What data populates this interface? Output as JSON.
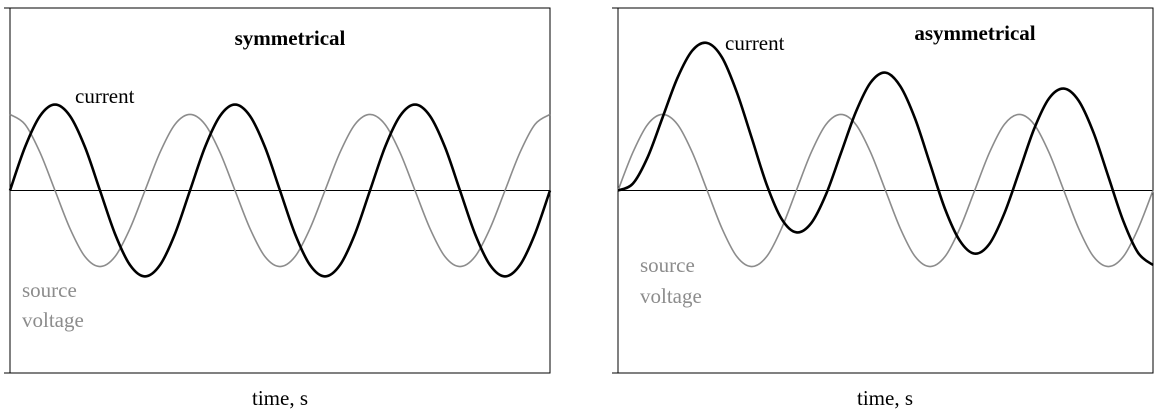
{
  "chart_data": [
    {
      "type": "line",
      "title": "symmetrical",
      "xlabel": "time, s",
      "xlim": [
        0,
        36
      ],
      "ylim": [
        -2.4,
        2.4
      ],
      "annotations": [
        {
          "text": "current"
        },
        {
          "text": "source"
        },
        {
          "text": "voltage"
        }
      ],
      "x": [
        0,
        1,
        2,
        3,
        4,
        5,
        6,
        7,
        8,
        9,
        10,
        11,
        12,
        13,
        14,
        15,
        16,
        17,
        18,
        19,
        20,
        21,
        22,
        23,
        24,
        25,
        26,
        27,
        28,
        29,
        30,
        31,
        32,
        33,
        34,
        35,
        36
      ],
      "series": [
        {
          "name": "source voltage",
          "color": "#8c8c8c",
          "values": [
            1,
            0.87,
            0.5,
            0,
            -0.5,
            -0.87,
            -1,
            -0.87,
            -0.5,
            0,
            0.5,
            0.87,
            1,
            0.87,
            0.5,
            0,
            -0.5,
            -0.87,
            -1,
            -0.87,
            -0.5,
            0,
            0.5,
            0.87,
            1,
            0.87,
            0.5,
            0,
            -0.5,
            -0.87,
            -1,
            -0.87,
            -0.5,
            0,
            0.5,
            0.87,
            1
          ]
        },
        {
          "name": "current",
          "color": "#000000",
          "values": [
            0,
            0.57,
            0.98,
            1.13,
            0.98,
            0.57,
            0,
            -0.57,
            -0.98,
            -1.13,
            -0.98,
            -0.57,
            0,
            0.57,
            0.98,
            1.13,
            0.98,
            0.57,
            0,
            -0.57,
            -0.98,
            -1.13,
            -0.98,
            -0.57,
            0,
            0.57,
            0.98,
            1.13,
            0.98,
            0.57,
            0,
            -0.57,
            -0.98,
            -1.13,
            -0.98,
            -0.57,
            0
          ]
        }
      ]
    },
    {
      "type": "line",
      "title": "asymmetrical",
      "xlabel": "time, s",
      "xlim": [
        0,
        36
      ],
      "ylim": [
        -2.4,
        2.4
      ],
      "annotations": [
        {
          "text": "current"
        },
        {
          "text": "source"
        },
        {
          "text": "voltage"
        }
      ],
      "x": [
        0,
        1,
        2,
        3,
        4,
        5,
        6,
        7,
        8,
        9,
        10,
        11,
        12,
        13,
        14,
        15,
        16,
        17,
        18,
        19,
        20,
        21,
        22,
        23,
        24,
        25,
        26,
        27,
        28,
        29,
        30,
        31,
        32,
        33,
        34,
        35,
        36
      ],
      "series": [
        {
          "name": "source voltage",
          "color": "#8c8c8c",
          "values": [
            0,
            0.5,
            0.87,
            1,
            0.87,
            0.5,
            0,
            -0.5,
            -0.87,
            -1,
            -0.87,
            -0.5,
            0,
            0.5,
            0.87,
            1,
            0.87,
            0.5,
            0,
            -0.5,
            -0.87,
            -1,
            -0.87,
            -0.5,
            0,
            0.5,
            0.87,
            1,
            0.87,
            0.5,
            0,
            -0.5,
            -0.87,
            -1,
            -0.87,
            -0.5,
            0
          ]
        },
        {
          "name": "current",
          "color": "#000000",
          "values": [
            0,
            0.09,
            0.44,
            0.96,
            1.48,
            1.84,
            1.94,
            1.75,
            1.29,
            0.69,
            0.08,
            -0.37,
            -0.55,
            -0.43,
            -0.05,
            0.49,
            1.03,
            1.42,
            1.55,
            1.37,
            0.94,
            0.35,
            -0.24,
            -0.66,
            -0.83,
            -0.7,
            -0.3,
            0.25,
            0.81,
            1.21,
            1.34,
            1.18,
            0.76,
            0.18,
            -0.4,
            -0.82,
            -0.98
          ]
        }
      ]
    }
  ]
}
